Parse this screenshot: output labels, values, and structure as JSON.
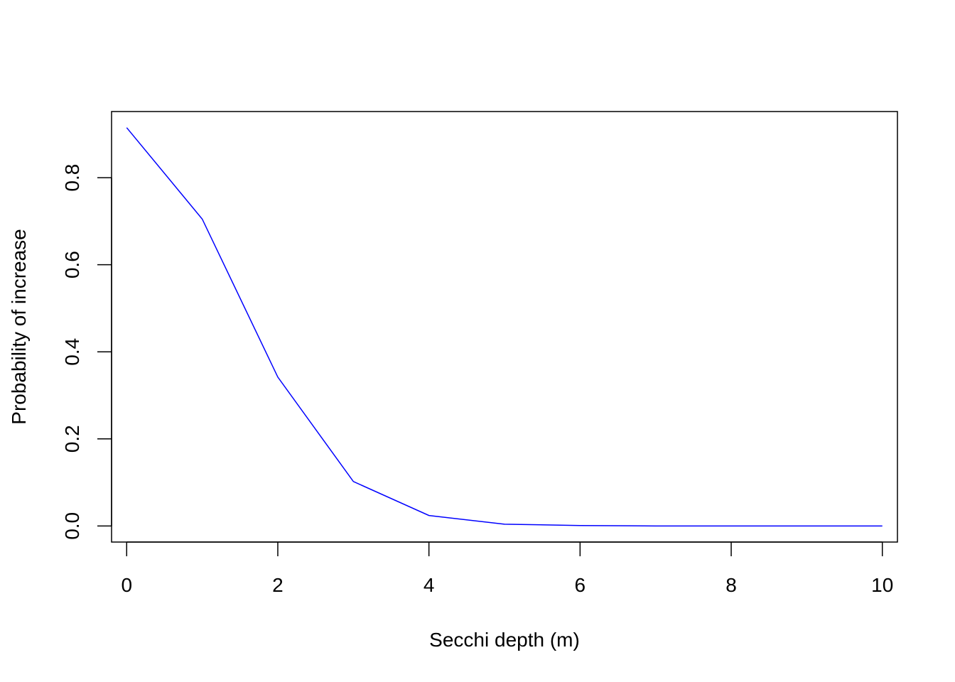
{
  "chart_data": {
    "type": "line",
    "title": "",
    "xlabel": "Secchi depth (m)",
    "ylabel": "Probability of increase",
    "xlim": [
      -0.2,
      10.2
    ],
    "ylim": [
      -0.037,
      0.952
    ],
    "x_ticks": [
      0,
      2,
      4,
      6,
      8,
      10
    ],
    "x_tick_labels": [
      "0",
      "2",
      "4",
      "6",
      "8",
      "10"
    ],
    "y_ticks": [
      0.0,
      0.2,
      0.4,
      0.6,
      0.8
    ],
    "y_tick_labels": [
      "0.0",
      "0.2",
      "0.4",
      "0.6",
      "0.8"
    ],
    "grid": false,
    "legend": "none",
    "series": [
      {
        "color": "#0000ff",
        "x": [
          0,
          1,
          2,
          3,
          4,
          5,
          6,
          7,
          8,
          9,
          10
        ],
        "y": [
          0.915,
          0.705,
          0.342,
          0.102,
          0.024,
          0.004,
          0.001,
          0.0,
          0.0,
          0.0,
          0.0
        ]
      }
    ]
  }
}
